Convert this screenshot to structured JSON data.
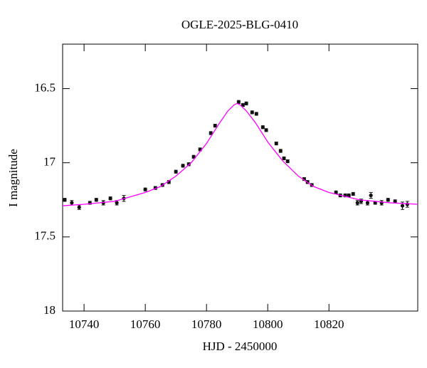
{
  "chart_data": {
    "type": "scatter",
    "title": "OGLE-2025-BLG-0410",
    "x_label": "HJD - 2450000",
    "y_label": "I magnitude",
    "xlim": [
      10733,
      10849
    ],
    "ylim": [
      18,
      16.2
    ],
    "xticks": [
      10740,
      10760,
      10780,
      10800,
      10820
    ],
    "yticks": [
      16.5,
      17,
      17.5,
      18
    ],
    "series": [
      {
        "type": "scatter",
        "color": "#111111",
        "x": [
          10733.7,
          10736.0,
          10738.4,
          10741.9,
          10744.0,
          10746.3,
          10748.6,
          10750.7,
          10753.0,
          10760.0,
          10763.3,
          10765.6,
          10767.7,
          10770.0,
          10772.3,
          10774.2,
          10775.8,
          10777.9,
          10781.4,
          10782.8,
          10790.5,
          10791.9,
          10793.0,
          10794.9,
          10796.3,
          10798.4,
          10799.5,
          10802.8,
          10804.2,
          10805.3,
          10806.5,
          10811.9,
          10813.0,
          10814.4,
          10822.3,
          10823.7,
          10825.3,
          10826.5,
          10827.9,
          10829.3,
          10830.5,
          10832.6,
          10833.7,
          10835.1,
          10837.2,
          10839.3,
          10841.6,
          10844.0,
          10845.6
        ],
        "values": [
          17.25,
          17.27,
          17.3,
          17.27,
          17.25,
          17.27,
          17.24,
          17.27,
          17.24,
          17.18,
          17.17,
          17.15,
          17.13,
          17.06,
          17.02,
          17.01,
          16.96,
          16.91,
          16.8,
          16.75,
          16.59,
          16.61,
          16.6,
          16.66,
          16.67,
          16.76,
          16.78,
          16.87,
          16.92,
          16.97,
          16.99,
          17.11,
          17.13,
          17.15,
          17.2,
          17.22,
          17.22,
          17.22,
          17.21,
          17.27,
          17.26,
          17.27,
          17.22,
          17.27,
          17.27,
          17.25,
          17.26,
          17.29,
          17.28
        ],
        "errors": [
          0.01,
          0.015,
          0.015,
          0.01,
          0.01,
          0.015,
          0.01,
          0.015,
          0.02,
          0.01,
          0.01,
          0.01,
          0.01,
          0.01,
          0.01,
          0.01,
          0.01,
          0.01,
          0.01,
          0.01,
          0.01,
          0.01,
          0.01,
          0.01,
          0.01,
          0.01,
          0.01,
          0.01,
          0.01,
          0.01,
          0.01,
          0.01,
          0.01,
          0.01,
          0.01,
          0.01,
          0.01,
          0.01,
          0.01,
          0.015,
          0.015,
          0.015,
          0.02,
          0.01,
          0.015,
          0.01,
          0.01,
          0.025,
          0.02
        ]
      },
      {
        "type": "line",
        "color": "#ff00ff",
        "x": [
          10733,
          10740,
          10750,
          10760,
          10765,
          10770,
          10775,
          10780,
          10784,
          10787,
          10789,
          10790,
          10791,
          10793,
          10796,
          10800,
          10805,
          10810,
          10815,
          10820,
          10830,
          10840,
          10849
        ],
        "values": [
          17.29,
          17.28,
          17.26,
          17.2,
          17.16,
          17.09,
          17.0,
          16.87,
          16.74,
          16.65,
          16.61,
          16.6,
          16.61,
          16.65,
          16.73,
          16.86,
          16.99,
          17.09,
          17.16,
          17.2,
          17.25,
          17.27,
          17.28
        ]
      }
    ]
  }
}
